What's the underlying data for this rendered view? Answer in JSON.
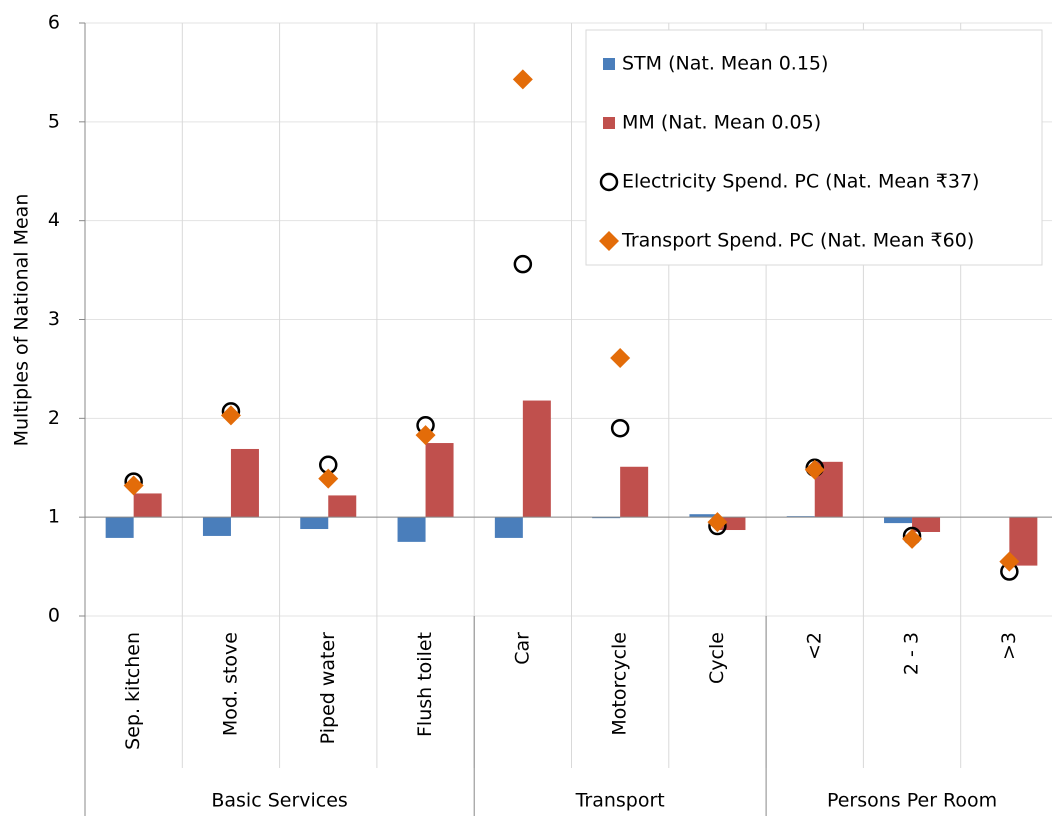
{
  "chart_data": {
    "type": "bar",
    "ylabel": "Multiples of National Mean",
    "categories": [
      "Sep. kitchen",
      "Mod. stove",
      "Piped water",
      "Flush toilet",
      "Car",
      "Motorcycle",
      "Cycle",
      "<2",
      "2 - 3",
      ">3"
    ],
    "groups": [
      {
        "name": "Basic Services",
        "count": 4
      },
      {
        "name": "Transport",
        "count": 3
      },
      {
        "name": "Persons Per Room",
        "count": 3
      }
    ],
    "series": [
      {
        "name": "STM (Nat. Mean 0.15)",
        "kind": "bar",
        "color": "#4a7ebb",
        "values": [
          0.79,
          0.81,
          0.88,
          0.75,
          0.79,
          0.99,
          1.03,
          1.01,
          0.94,
          1.0
        ]
      },
      {
        "name": "MM (Nat. Mean 0.05)",
        "kind": "bar",
        "color": "#c0504d",
        "values": [
          1.24,
          1.69,
          1.22,
          1.75,
          2.18,
          1.51,
          0.87,
          1.56,
          0.85,
          0.51
        ]
      },
      {
        "name": "Electricity Spend. PC (Nat. Mean ₹37)",
        "kind": "circle",
        "color": "#000000",
        "values": [
          1.36,
          2.07,
          1.53,
          1.93,
          3.56,
          1.9,
          0.91,
          1.5,
          0.81,
          0.45
        ]
      },
      {
        "name": "Transport Spend. PC (Nat. Mean ₹60)",
        "kind": "diamond",
        "color": "#e36c09",
        "values": [
          1.32,
          2.03,
          1.39,
          1.83,
          5.43,
          2.61,
          0.95,
          1.48,
          0.78,
          0.55
        ]
      }
    ],
    "ylim": [
      0,
      6
    ],
    "yticks": [
      0,
      1,
      2,
      3,
      4,
      5,
      6
    ],
    "xaxis_crosses_at": 1,
    "grid": true,
    "legend": "upper right"
  }
}
